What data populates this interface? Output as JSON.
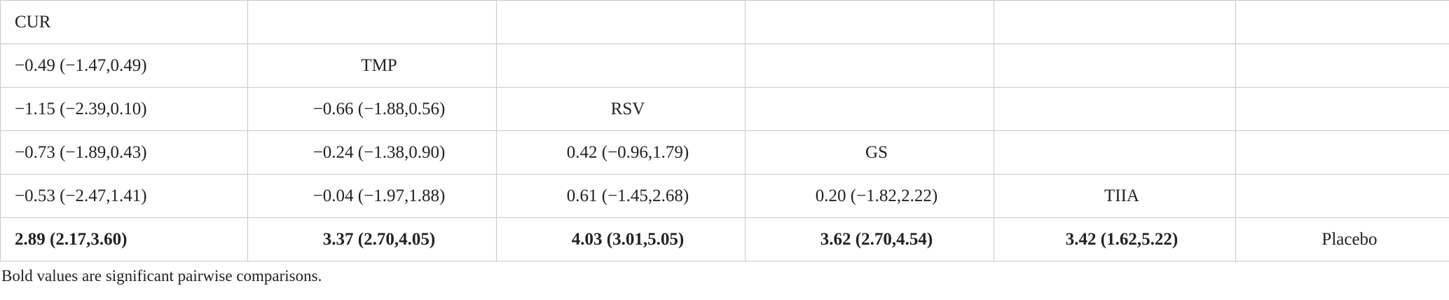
{
  "table": {
    "rows": [
      [
        "CUR"
      ],
      [
        "−0.49 (−1.47,0.49)",
        "TMP"
      ],
      [
        "−1.15 (−2.39,0.10)",
        "−0.66 (−1.88,0.56)",
        "RSV"
      ],
      [
        "−0.73 (−1.89,0.43)",
        "−0.24 (−1.38,0.90)",
        "0.42 (−0.96,1.79)",
        "GS"
      ],
      [
        "−0.53 (−2.47,1.41)",
        "−0.04 (−1.97,1.88)",
        "0.61 (−1.45,2.68)",
        "0.20 (−1.82,2.22)",
        "TIIA"
      ],
      [
        "2.89 (2.17,3.60)",
        "3.37 (2.70,4.05)",
        "4.03 (3.01,5.05)",
        "3.62 (2.70,4.54)",
        "3.42 (1.62,5.22)",
        "Placebo"
      ]
    ]
  },
  "footnote": "Bold values are significant pairwise comparisons."
}
